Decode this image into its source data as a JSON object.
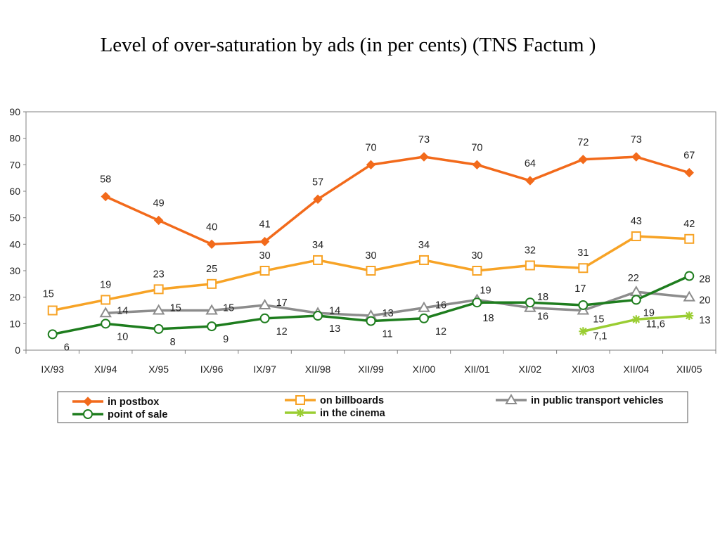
{
  "title": "Level of over-saturation by ads (in per cents) (TNS Factum )",
  "chart_data": {
    "type": "line",
    "title": "Level of over-saturation by ads (in per cents) (TNS Factum )",
    "categories": [
      "IX/93",
      "XI/94",
      "X/95",
      "IX/96",
      "IX/97",
      "XII/98",
      "XII/99",
      "XI/00",
      "XII/01",
      "XI/02",
      "XI/03",
      "XII/04",
      "XII/05"
    ],
    "ylim": [
      0,
      90
    ],
    "yticks": [
      0,
      10,
      20,
      30,
      40,
      50,
      60,
      70,
      80,
      90
    ],
    "grid": false,
    "legend_position": "bottom",
    "series": [
      {
        "name": "in postbox",
        "color": "#f26a1b",
        "marker": "diamond",
        "values": [
          null,
          58,
          49,
          40,
          41,
          57,
          70,
          73,
          70,
          64,
          72,
          73,
          67
        ],
        "labels": [
          null,
          "58",
          "49",
          "40",
          "41",
          "57",
          "70",
          "73",
          "70",
          "64",
          "72",
          "73",
          "67"
        ]
      },
      {
        "name": "on billboards",
        "color": "#f7a326",
        "marker": "square",
        "values": [
          15,
          19,
          23,
          25,
          30,
          34,
          30,
          34,
          30,
          32,
          31,
          43,
          42
        ],
        "labels": [
          "15",
          "19",
          "23",
          "25",
          "30",
          "34",
          "30",
          "34",
          "30",
          "32",
          "31",
          "43",
          "42"
        ]
      },
      {
        "name": "in public transport vehicles",
        "color": "#8c8c8c",
        "marker": "triangle",
        "values": [
          null,
          14,
          15,
          15,
          17,
          14,
          13,
          16,
          19,
          16,
          15,
          22,
          20
        ],
        "labels": [
          null,
          "14",
          "15",
          "15",
          "17",
          "14",
          "13",
          "16",
          "19",
          "16",
          "15",
          "22",
          "20"
        ]
      },
      {
        "name": "point of sale",
        "color": "#1e7d1e",
        "marker": "circle",
        "values": [
          6,
          10,
          8,
          9,
          12,
          13,
          11,
          12,
          18,
          18,
          17,
          19,
          28
        ],
        "labels": [
          "6",
          "10",
          "8",
          "9",
          "12",
          "13",
          "11",
          "12",
          "18",
          "18",
          "17",
          "19",
          "28"
        ]
      },
      {
        "name": "in the cinema",
        "color": "#9acd32",
        "marker": "star",
        "values": [
          null,
          null,
          null,
          null,
          null,
          null,
          null,
          null,
          null,
          null,
          7.1,
          11.6,
          13
        ],
        "labels": [
          null,
          null,
          null,
          null,
          null,
          null,
          null,
          null,
          null,
          null,
          "7,1",
          "11,6",
          "13"
        ]
      }
    ]
  }
}
